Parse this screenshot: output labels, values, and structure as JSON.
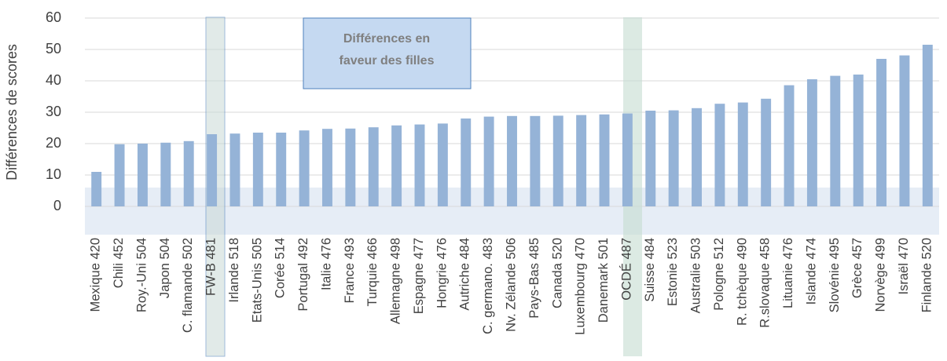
{
  "chart_data": {
    "type": "bar",
    "y_label": "Différences de scores",
    "annotation": [
      "Différences en",
      "faveur des filles"
    ],
    "categories": [
      "Mexique",
      "Chili",
      "Roy.-Uni",
      "Japon",
      "C. flamande",
      "FW-B",
      "Irlande",
      "Etats-Unis",
      "Corée",
      "Portugal",
      "Italie",
      "France",
      "Turquie",
      "Allemagne",
      "Espagne",
      "Hongrie",
      "Autriche",
      "C. germano.",
      "Nv. Zélande",
      "Pays-Bas",
      "Canada",
      "Luxembourg",
      "Danemark",
      "OCDÉ",
      "Suisse",
      "Estonie",
      "Australie",
      "Pologne",
      "R. tchèque",
      "R.slovaque",
      "Lituanie",
      "Islande",
      "Slovénie",
      "Grèce",
      "Norvège",
      "Israël",
      "Finlande"
    ],
    "scores": [
      420,
      452,
      504,
      504,
      502,
      481,
      518,
      505,
      514,
      492,
      476,
      493,
      466,
      498,
      477,
      476,
      484,
      483,
      506,
      485,
      520,
      470,
      501,
      487,
      484,
      523,
      503,
      512,
      490,
      458,
      476,
      474,
      495,
      457,
      499,
      470,
      520
    ],
    "values": [
      11,
      19.8,
      20,
      20.3,
      20.8,
      23,
      23.2,
      23.5,
      23.5,
      24.2,
      24.7,
      24.8,
      25.2,
      25.8,
      26.1,
      26.4,
      28,
      28.6,
      28.8,
      28.8,
      28.9,
      29.1,
      29.3,
      29.6,
      30.5,
      30.6,
      31.3,
      32.7,
      33.1,
      34.3,
      38.6,
      40.5,
      41.6,
      42,
      47,
      48.1,
      51.5
    ],
    "color": "#95b3d7",
    "ylim": [
      0,
      60
    ],
    "yticks": [
      0,
      10,
      20,
      30,
      40,
      50,
      60
    ],
    "grid": true
  }
}
